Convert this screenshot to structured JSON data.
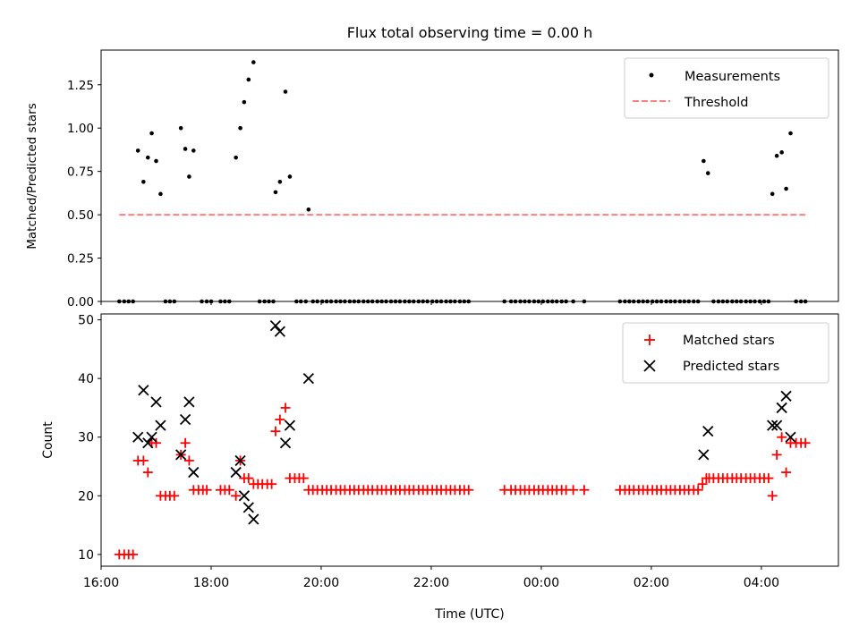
{
  "chart_data": [
    {
      "type": "scatter",
      "title": "Flux total observing time = 0.00 h",
      "xlabel": "",
      "ylabel": "Matched/Predicted stars",
      "xlim": [
        16.0,
        29.4
      ],
      "ylim": [
        0,
        1.45
      ],
      "yticks": [
        0,
        0.25,
        0.5,
        0.75,
        1.0,
        1.25
      ],
      "ytick_labels": [
        "0.00",
        "0.25",
        "0.50",
        "0.75",
        "1.00",
        "1.25"
      ],
      "legend_position": "upper-right",
      "series": [
        {
          "name": "Measurements",
          "marker": "dot",
          "color": "#000000",
          "points": [
            [
              16.67,
              0.87
            ],
            [
              16.77,
              0.69
            ],
            [
              16.85,
              0.83
            ],
            [
              16.92,
              0.97
            ],
            [
              17.0,
              0.81
            ],
            [
              17.08,
              0.62
            ],
            [
              17.45,
              1.0
            ],
            [
              17.53,
              0.88
            ],
            [
              17.6,
              0.72
            ],
            [
              17.68,
              0.87
            ],
            [
              18.45,
              0.83
            ],
            [
              18.53,
              1.0
            ],
            [
              18.6,
              1.15
            ],
            [
              18.68,
              1.28
            ],
            [
              18.77,
              1.38
            ],
            [
              19.17,
              0.63
            ],
            [
              19.25,
              0.69
            ],
            [
              19.35,
              1.21
            ],
            [
              19.43,
              0.72
            ],
            [
              19.77,
              0.53
            ],
            [
              26.95,
              0.81
            ],
            [
              27.03,
              0.74
            ],
            [
              28.2,
              0.62
            ],
            [
              28.28,
              0.84
            ],
            [
              28.37,
              0.86
            ],
            [
              28.45,
              0.65
            ],
            [
              28.53,
              0.97
            ]
          ],
          "zero_points_x": [
            16.33,
            16.42,
            16.5,
            16.58,
            17.17,
            17.25,
            17.33,
            17.83,
            17.92,
            18.0,
            18.17,
            18.25,
            18.33,
            18.88,
            18.97,
            19.05,
            19.13,
            19.55,
            19.63,
            19.72,
            19.85,
            19.93,
            20.02,
            20.1,
            20.18,
            20.27,
            20.35,
            20.43,
            20.52,
            20.6,
            20.68,
            20.77,
            20.85,
            20.93,
            21.02,
            21.1,
            21.18,
            21.27,
            21.35,
            21.43,
            21.52,
            21.6,
            21.68,
            21.77,
            21.85,
            21.93,
            22.02,
            22.1,
            22.18,
            22.27,
            22.35,
            22.43,
            22.52,
            22.6,
            22.68,
            23.33,
            23.45,
            23.53,
            23.62,
            23.7,
            23.78,
            23.87,
            23.95,
            24.03,
            24.12,
            24.2,
            24.28,
            24.37,
            24.45,
            24.58,
            24.78,
            25.43,
            25.52,
            25.6,
            25.68,
            25.77,
            25.85,
            25.93,
            26.02,
            26.1,
            26.18,
            26.27,
            26.35,
            26.43,
            26.52,
            26.6,
            26.68,
            26.77,
            26.85,
            27.13,
            27.22,
            27.3,
            27.38,
            27.47,
            27.55,
            27.63,
            27.72,
            27.8,
            27.88,
            27.97,
            28.05,
            28.13,
            28.63,
            28.72,
            28.8
          ]
        },
        {
          "name": "Threshold",
          "style": "dashed",
          "color": "#ff7f7f",
          "points": [
            [
              16.33,
              0.5
            ],
            [
              28.8,
              0.5
            ]
          ]
        }
      ]
    },
    {
      "type": "scatter",
      "title": "",
      "xlabel": "Time (UTC)",
      "ylabel": "Count",
      "xlim": [
        16.0,
        29.4
      ],
      "ylim": [
        8,
        51
      ],
      "yticks": [
        10,
        20,
        30,
        40,
        50
      ],
      "ytick_labels": [
        "10",
        "20",
        "30",
        "40",
        "50"
      ],
      "xticks": [
        16,
        18,
        20,
        22,
        24,
        26,
        28
      ],
      "xtick_labels": [
        "16:00",
        "18:00",
        "20:00",
        "22:00",
        "00:00",
        "02:00",
        "04:00"
      ],
      "legend_position": "upper-right",
      "series": [
        {
          "name": "Matched stars",
          "marker": "plus",
          "color": "#ff0000",
          "points": [
            [
              16.33,
              10
            ],
            [
              16.42,
              10
            ],
            [
              16.5,
              10
            ],
            [
              16.58,
              10
            ],
            [
              16.67,
              26
            ],
            [
              16.77,
              26
            ],
            [
              16.85,
              24
            ],
            [
              16.92,
              29
            ],
            [
              17.0,
              29
            ],
            [
              17.08,
              20
            ],
            [
              17.17,
              20
            ],
            [
              17.25,
              20
            ],
            [
              17.33,
              20
            ],
            [
              17.45,
              27
            ],
            [
              17.53,
              29
            ],
            [
              17.6,
              26
            ],
            [
              17.68,
              21
            ],
            [
              17.77,
              21
            ],
            [
              17.85,
              21
            ],
            [
              17.92,
              21
            ],
            [
              18.17,
              21
            ],
            [
              18.25,
              21
            ],
            [
              18.33,
              21
            ],
            [
              18.45,
              20
            ],
            [
              18.53,
              26
            ],
            [
              18.6,
              23
            ],
            [
              18.68,
              23
            ],
            [
              18.77,
              22
            ],
            [
              18.85,
              22
            ],
            [
              18.93,
              22
            ],
            [
              19.02,
              22
            ],
            [
              19.1,
              22
            ],
            [
              19.17,
              31
            ],
            [
              19.25,
              33
            ],
            [
              19.35,
              35
            ],
            [
              19.43,
              23
            ],
            [
              19.52,
              23
            ],
            [
              19.6,
              23
            ],
            [
              19.68,
              23
            ],
            [
              19.77,
              21
            ],
            [
              19.85,
              21
            ],
            [
              19.93,
              21
            ],
            [
              20.02,
              21
            ],
            [
              20.1,
              21
            ],
            [
              20.18,
              21
            ],
            [
              20.27,
              21
            ],
            [
              20.35,
              21
            ],
            [
              20.43,
              21
            ],
            [
              20.52,
              21
            ],
            [
              20.6,
              21
            ],
            [
              20.68,
              21
            ],
            [
              20.77,
              21
            ],
            [
              20.85,
              21
            ],
            [
              20.93,
              21
            ],
            [
              21.02,
              21
            ],
            [
              21.1,
              21
            ],
            [
              21.18,
              21
            ],
            [
              21.27,
              21
            ],
            [
              21.35,
              21
            ],
            [
              21.43,
              21
            ],
            [
              21.52,
              21
            ],
            [
              21.6,
              21
            ],
            [
              21.68,
              21
            ],
            [
              21.77,
              21
            ],
            [
              21.85,
              21
            ],
            [
              21.93,
              21
            ],
            [
              22.02,
              21
            ],
            [
              22.1,
              21
            ],
            [
              22.18,
              21
            ],
            [
              22.27,
              21
            ],
            [
              22.35,
              21
            ],
            [
              22.43,
              21
            ],
            [
              22.52,
              21
            ],
            [
              22.6,
              21
            ],
            [
              22.68,
              21
            ],
            [
              23.33,
              21
            ],
            [
              23.45,
              21
            ],
            [
              23.53,
              21
            ],
            [
              23.62,
              21
            ],
            [
              23.7,
              21
            ],
            [
              23.78,
              21
            ],
            [
              23.87,
              21
            ],
            [
              23.95,
              21
            ],
            [
              24.03,
              21
            ],
            [
              24.12,
              21
            ],
            [
              24.2,
              21
            ],
            [
              24.28,
              21
            ],
            [
              24.37,
              21
            ],
            [
              24.45,
              21
            ],
            [
              24.58,
              21
            ],
            [
              24.78,
              21
            ],
            [
              25.43,
              21
            ],
            [
              25.52,
              21
            ],
            [
              25.6,
              21
            ],
            [
              25.68,
              21
            ],
            [
              25.77,
              21
            ],
            [
              25.85,
              21
            ],
            [
              25.93,
              21
            ],
            [
              26.02,
              21
            ],
            [
              26.1,
              21
            ],
            [
              26.18,
              21
            ],
            [
              26.27,
              21
            ],
            [
              26.35,
              21
            ],
            [
              26.43,
              21
            ],
            [
              26.52,
              21
            ],
            [
              26.6,
              21
            ],
            [
              26.68,
              21
            ],
            [
              26.77,
              21
            ],
            [
              26.85,
              21
            ],
            [
              26.93,
              22
            ],
            [
              27.0,
              23
            ],
            [
              27.05,
              23
            ],
            [
              27.13,
              23
            ],
            [
              27.22,
              23
            ],
            [
              27.3,
              23
            ],
            [
              27.38,
              23
            ],
            [
              27.47,
              23
            ],
            [
              27.55,
              23
            ],
            [
              27.63,
              23
            ],
            [
              27.72,
              23
            ],
            [
              27.8,
              23
            ],
            [
              27.88,
              23
            ],
            [
              27.97,
              23
            ],
            [
              28.05,
              23
            ],
            [
              28.13,
              23
            ],
            [
              28.2,
              20
            ],
            [
              28.28,
              27
            ],
            [
              28.37,
              30
            ],
            [
              28.45,
              24
            ],
            [
              28.53,
              29
            ],
            [
              28.63,
              29
            ],
            [
              28.72,
              29
            ],
            [
              28.8,
              29
            ]
          ]
        },
        {
          "name": "Predicted stars",
          "marker": "cross",
          "color": "#000000",
          "points": [
            [
              16.67,
              30
            ],
            [
              16.77,
              38
            ],
            [
              16.85,
              29
            ],
            [
              16.92,
              30
            ],
            [
              17.0,
              36
            ],
            [
              17.08,
              32
            ],
            [
              17.45,
              27
            ],
            [
              17.53,
              33
            ],
            [
              17.6,
              36
            ],
            [
              17.68,
              24
            ],
            [
              18.45,
              24
            ],
            [
              18.53,
              26
            ],
            [
              18.6,
              20
            ],
            [
              18.68,
              18
            ],
            [
              18.77,
              16
            ],
            [
              19.17,
              49
            ],
            [
              19.25,
              48
            ],
            [
              19.35,
              29
            ],
            [
              19.43,
              32
            ],
            [
              19.77,
              40
            ],
            [
              26.95,
              27
            ],
            [
              27.03,
              31
            ],
            [
              28.2,
              32
            ],
            [
              28.28,
              32
            ],
            [
              28.37,
              35
            ],
            [
              28.45,
              37
            ],
            [
              28.53,
              30
            ]
          ]
        }
      ]
    }
  ]
}
